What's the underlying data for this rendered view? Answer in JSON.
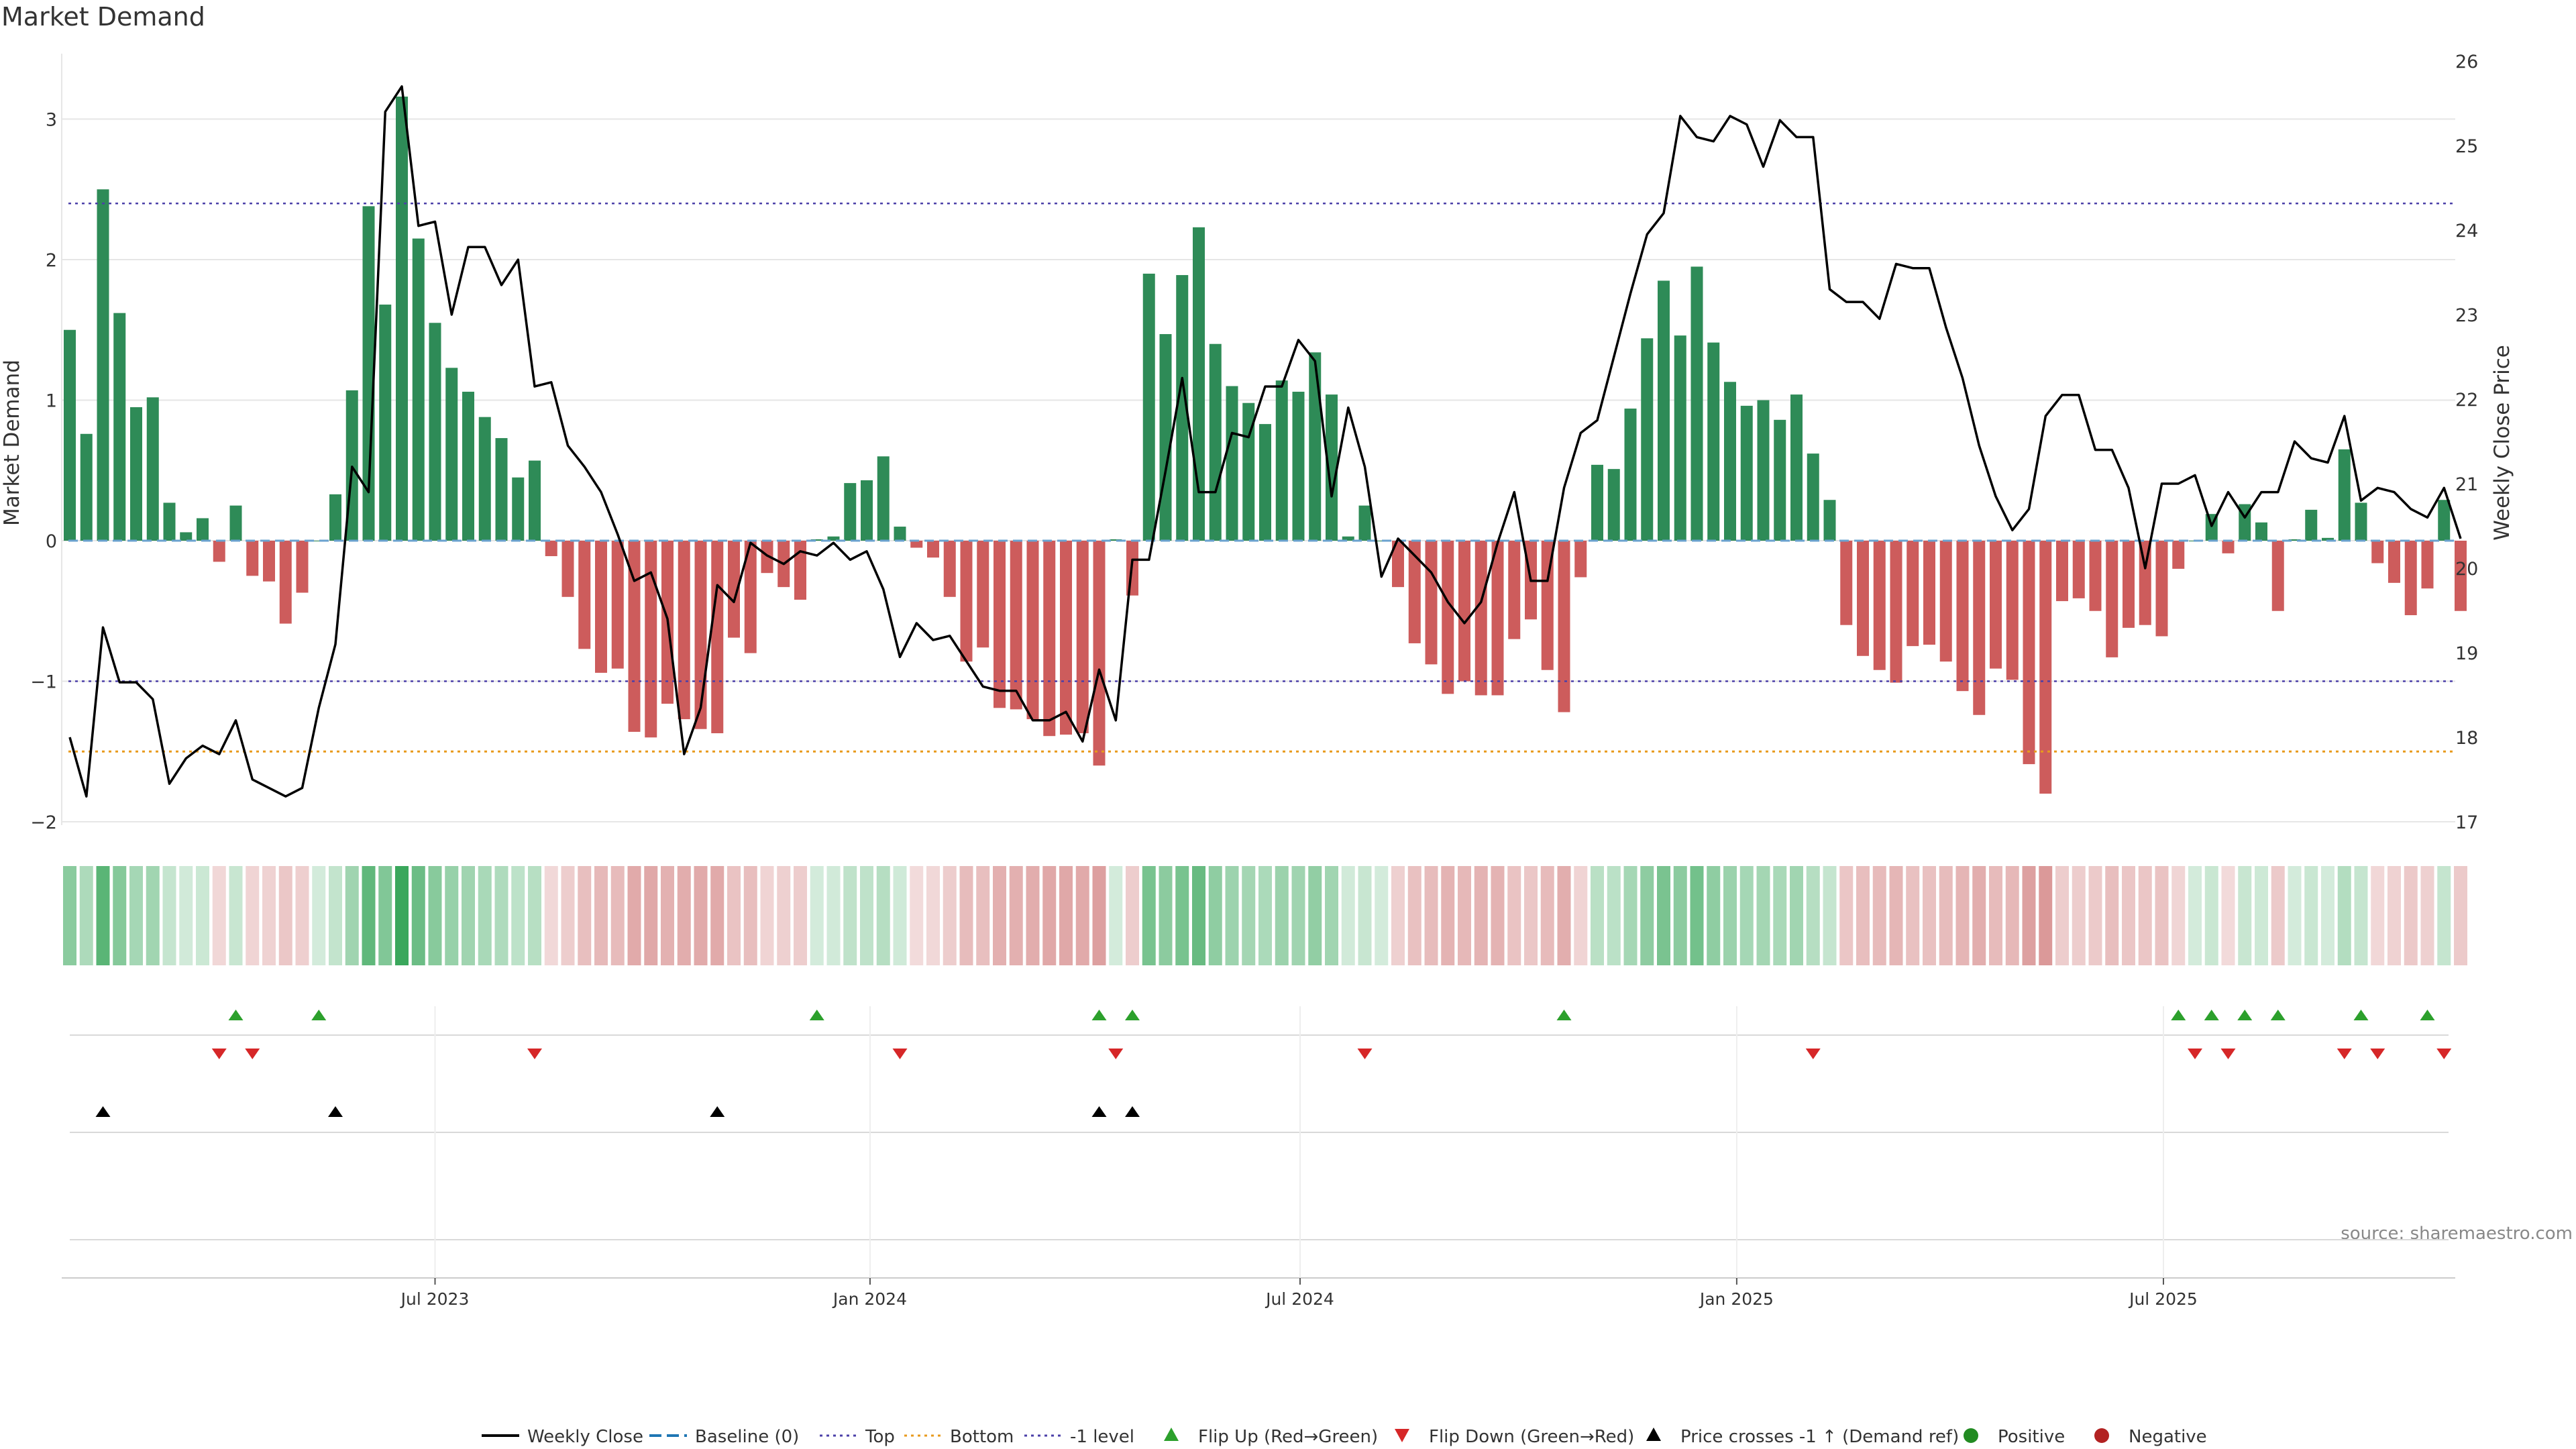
{
  "chart_data": {
    "type": "bar+line",
    "title": "Market Demand",
    "ylabel_left": "Market Demand",
    "ylabel_right": "Weekly Close Price",
    "source": "source: sharemaestro.com",
    "ylim_left": [
      -2.4,
      3.4
    ],
    "yticks_left": [
      -2,
      -1,
      0,
      1,
      2,
      3
    ],
    "yticks_left_labels": [
      "−2",
      "−1",
      "0",
      "1",
      "2",
      "3"
    ],
    "ylim_right": [
      16.8,
      26.2
    ],
    "yticks_right": [
      17,
      18,
      19,
      20,
      21,
      22,
      23,
      24,
      25,
      26
    ],
    "yticks_right_labels": [
      "17",
      "18",
      "19",
      "20",
      "21",
      "22",
      "23",
      "24",
      "25",
      "26"
    ],
    "reference_lines": {
      "top": 2.4,
      "minus_one": -1.0,
      "bottom": -1.5,
      "baseline": 0
    },
    "x_ticks": [
      {
        "label": "Jul 2023",
        "week": 22
      },
      {
        "label": "Jan 2024",
        "week": 48.2
      },
      {
        "label": "Jul 2024",
        "week": 74.1
      },
      {
        "label": "Jan 2025",
        "week": 100.4
      },
      {
        "label": "Jul 2025",
        "week": 126.1
      }
    ],
    "demand": [
      1.5,
      0.76,
      2.5,
      1.62,
      0.95,
      1.02,
      0.27,
      0.06,
      0.16,
      -0.15,
      0.25,
      -0.25,
      -0.29,
      -0.59,
      -0.37,
      0,
      0.33,
      1.07,
      2.38,
      1.68,
      3.16,
      2.15,
      1.55,
      1.23,
      1.06,
      0.88,
      0.73,
      0.45,
      0.57,
      -0.11,
      -0.4,
      -0.77,
      -0.94,
      -0.91,
      -1.36,
      -1.4,
      -1.16,
      -1.27,
      -1.34,
      -1.37,
      -0.69,
      -0.8,
      -0.23,
      -0.33,
      -0.42,
      0.01,
      0.03,
      0.41,
      0.43,
      0.6,
      0.1,
      -0.05,
      -0.12,
      -0.4,
      -0.86,
      -0.76,
      -1.19,
      -1.2,
      -1.27,
      -1.39,
      -1.38,
      -1.37,
      -1.6,
      0.01,
      -0.39,
      1.9,
      1.47,
      1.89,
      2.23,
      1.4,
      1.1,
      0.98,
      0.83,
      1.14,
      1.06,
      1.34,
      1.04,
      0.03,
      0.25,
      0,
      -0.33,
      -0.73,
      -0.88,
      -1.09,
      -1.0,
      -1.1,
      -1.1,
      -0.7,
      -0.56,
      -0.92,
      -1.22,
      -0.26,
      0.54,
      0.51,
      0.94,
      1.44,
      1.85,
      1.46,
      1.95,
      1.41,
      1.13,
      0.96,
      1.0,
      0.86,
      1.04,
      0.62,
      0.29,
      -0.6,
      -0.82,
      -0.92,
      -1.01,
      -0.75,
      -0.74,
      -0.86,
      -1.07,
      -1.24,
      -0.91,
      -0.99,
      -1.59,
      -1.8,
      -0.43,
      -0.41,
      -0.5,
      -0.83,
      -0.62,
      -0.6,
      -0.68,
      -0.2,
      0,
      0.19,
      -0.09,
      0.26,
      0.13,
      -0.5,
      0.01,
      0.22,
      0.02,
      0.65,
      0.27,
      -0.16,
      -0.3,
      -0.53,
      -0.34,
      0.29,
      -0.5
    ],
    "close": [
      18.0,
      17.3,
      19.3,
      18.65,
      18.65,
      18.45,
      17.45,
      17.75,
      17.9,
      17.8,
      18.2,
      17.5,
      17.4,
      17.3,
      17.4,
      18.35,
      19.1,
      21.2,
      20.9,
      25.4,
      25.7,
      24.05,
      24.1,
      23.0,
      23.8,
      23.8,
      23.35,
      23.65,
      22.15,
      22.2,
      21.45,
      21.2,
      20.9,
      20.4,
      19.85,
      19.95,
      19.4,
      17.8,
      18.35,
      19.8,
      19.6,
      20.3,
      20.15,
      20.05,
      20.2,
      20.15,
      20.3,
      20.1,
      20.2,
      19.75,
      18.95,
      19.35,
      19.15,
      19.2,
      18.9,
      18.6,
      18.55,
      18.55,
      18.2,
      18.2,
      18.3,
      17.95,
      18.8,
      18.2,
      20.1,
      20.1,
      21.15,
      22.25,
      20.9,
      20.9,
      21.6,
      21.55,
      22.15,
      22.15,
      22.7,
      22.45,
      20.85,
      21.9,
      21.2,
      19.9,
      20.35,
      20.15,
      19.95,
      19.6,
      19.35,
      19.6,
      20.3,
      20.9,
      19.85,
      19.85,
      20.95,
      21.6,
      21.75,
      22.5,
      23.25,
      23.95,
      24.2,
      25.35,
      25.1,
      25.05,
      25.35,
      25.25,
      24.75,
      25.3,
      25.1,
      25.1,
      23.3,
      23.15,
      23.15,
      22.95,
      23.6,
      23.55,
      23.55,
      22.85,
      22.25,
      21.45,
      20.85,
      20.45,
      20.7,
      21.8,
      22.05,
      22.05,
      21.4,
      21.4,
      20.95,
      20.0,
      21.0,
      21.0,
      21.1,
      20.5,
      20.9,
      20.6,
      20.9,
      20.9,
      21.5,
      21.3,
      21.25,
      21.8,
      20.8,
      20.95,
      20.9,
      20.7,
      20.6,
      20.95,
      20.35
    ],
    "signals": {
      "flip_up_weeks": [
        10,
        15,
        45,
        62,
        64,
        90,
        127,
        129,
        131,
        133,
        138,
        142
      ],
      "flip_down_weeks": [
        9,
        11,
        28,
        50,
        63,
        78,
        105,
        128,
        130,
        137,
        139,
        143
      ],
      "price_cross_weeks": [
        2,
        16,
        39,
        62,
        64
      ]
    },
    "legend": [
      {
        "label": "Weekly Close",
        "kind": "line",
        "color": "#000000"
      },
      {
        "label": "Baseline (0)",
        "kind": "dash",
        "color": "#1f77b4"
      },
      {
        "label": "Top",
        "kind": "dot",
        "color": "#4b3fa8"
      },
      {
        "label": "Bottom",
        "kind": "dot",
        "color": "#e89a1c"
      },
      {
        "label": "-1 level",
        "kind": "dot",
        "color": "#4b3fa8"
      },
      {
        "label": "Flip Up (Red→Green)",
        "kind": "tri-up",
        "color": "#2ca02c"
      },
      {
        "label": "Flip Down (Green→Red)",
        "kind": "tri-down",
        "color": "#d62728"
      },
      {
        "label": "Price crosses -1 ↑ (Demand ref)",
        "kind": "tri-up",
        "color": "#000000"
      },
      {
        "label": "Positive",
        "kind": "dot-marker",
        "color": "#228b22"
      },
      {
        "label": "Negative",
        "kind": "dot-marker",
        "color": "#b22222"
      }
    ]
  },
  "colors": {
    "positive_bar": "#2e8b57",
    "negative_bar": "#cd5c5c",
    "heat_positive": "#38a65a",
    "heat_negative": "#c86464",
    "close_line": "#000000",
    "grid": "#e6e6e6"
  }
}
